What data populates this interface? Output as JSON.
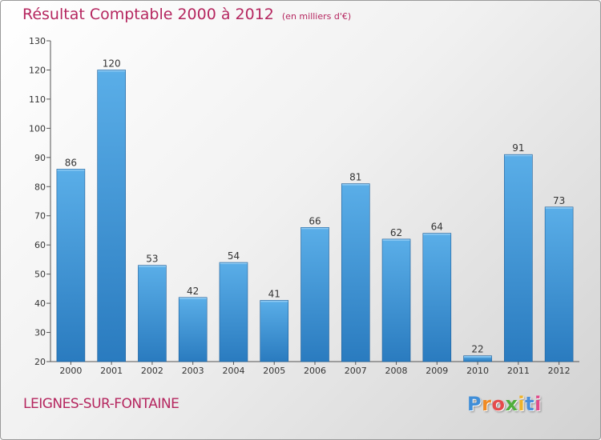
{
  "header": {
    "title": "Résultat Comptable 2000 à 2012",
    "subtitle": "(en milliers d'€)"
  },
  "footer": {
    "city": "LEIGNES-SUR-FONTAINE",
    "logo_letters": [
      "P",
      "r",
      "o",
      "x",
      "i",
      "t",
      "i"
    ],
    "logo_colors": [
      "#3f8ed8",
      "#f08a24",
      "#e54b4b",
      "#4fae3c",
      "#f0b32a",
      "#4a8fdb",
      "#e04a8a"
    ]
  },
  "colors": {
    "title": "#b5265f",
    "bar_top": "#5aaee8",
    "bar_bottom": "#2a7bbf"
  },
  "chart_data": {
    "type": "bar",
    "title": "Résultat Comptable 2000 à 2012",
    "subtitle": "(en milliers d'€)",
    "categories": [
      "2000",
      "2001",
      "2002",
      "2003",
      "2004",
      "2005",
      "2006",
      "2007",
      "2008",
      "2009",
      "2010",
      "2011",
      "2012"
    ],
    "values": [
      86,
      120,
      53,
      42,
      54,
      41,
      66,
      81,
      62,
      64,
      22,
      91,
      73
    ],
    "ylim": [
      20,
      130
    ],
    "yticks": [
      20,
      30,
      40,
      50,
      60,
      70,
      80,
      90,
      100,
      110,
      120,
      130
    ],
    "xlabel": "",
    "ylabel": "",
    "grid": false
  }
}
